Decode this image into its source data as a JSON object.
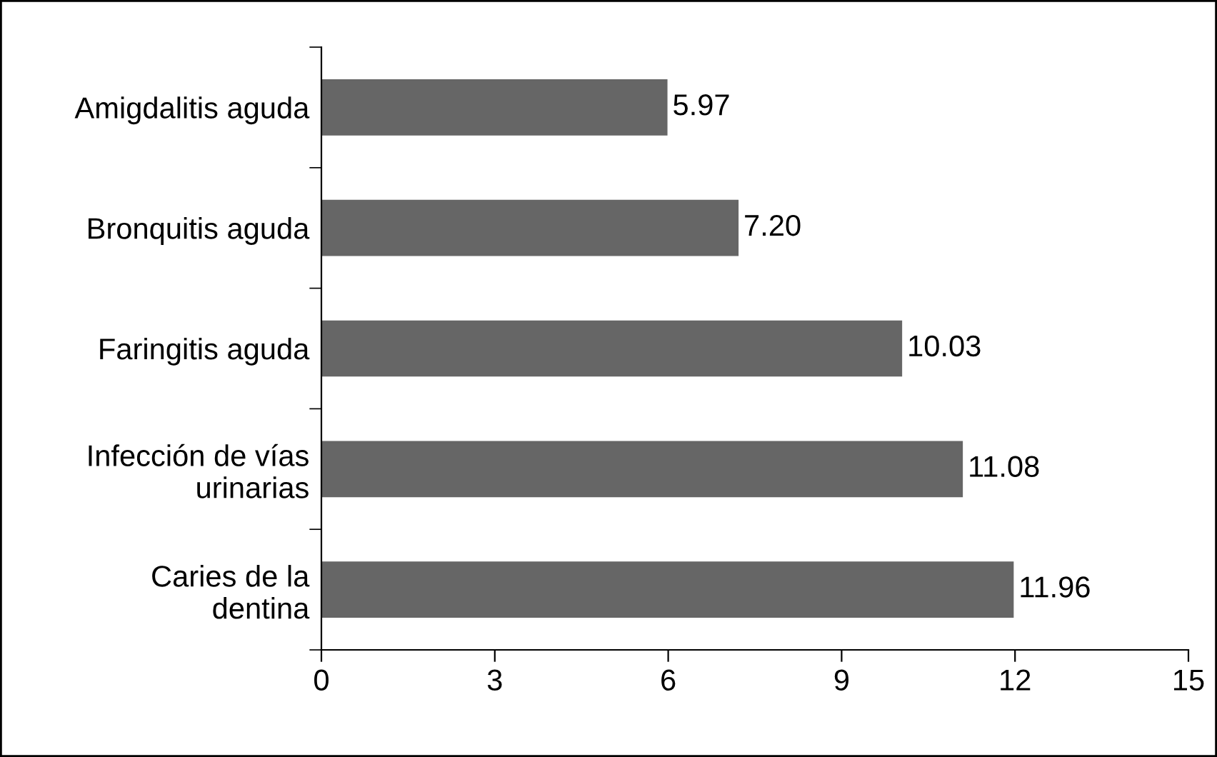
{
  "chart_data": {
    "type": "bar",
    "orientation": "horizontal",
    "categories": [
      "Amigdalitis aguda",
      "Bronquitis aguda",
      "Faringitis aguda",
      "Infección de vías\nurinarias",
      "Caries de la\ndentina"
    ],
    "values": [
      5.97,
      7.2,
      10.03,
      11.08,
      11.96
    ],
    "value_labels": [
      "5.97",
      "7.20",
      "10.03",
      "11.08",
      "11.96"
    ],
    "color": "#666666",
    "xlim": [
      0,
      15
    ],
    "xticks": [
      0,
      3,
      6,
      9,
      12,
      15
    ],
    "grid": false,
    "legend": false
  }
}
